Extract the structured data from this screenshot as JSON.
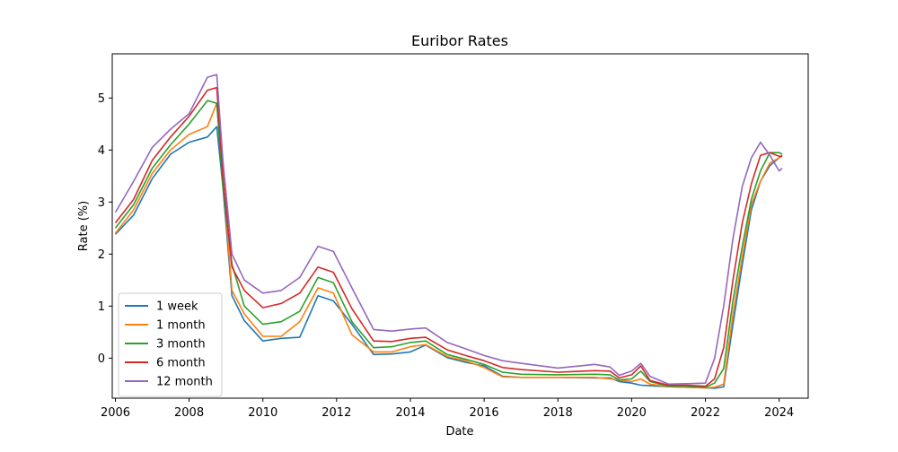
{
  "chart_data": {
    "type": "line",
    "title": "Euribor Rates",
    "xlabel": "Date",
    "ylabel": "Rate (%)",
    "xlim": [
      "2005-12-01",
      "2024-10-15"
    ],
    "ylim": [
      -0.77,
      5.85
    ],
    "x_ticks": [
      {
        "label": "2006",
        "date": "2006-01-01"
      },
      {
        "label": "2008",
        "date": "2008-01-01"
      },
      {
        "label": "2010",
        "date": "2010-01-01"
      },
      {
        "label": "2012",
        "date": "2012-01-01"
      },
      {
        "label": "2014",
        "date": "2014-01-01"
      },
      {
        "label": "2016",
        "date": "2016-01-01"
      },
      {
        "label": "2018",
        "date": "2018-01-01"
      },
      {
        "label": "2020",
        "date": "2020-01-01"
      },
      {
        "label": "2022",
        "date": "2022-01-01"
      },
      {
        "label": "2024",
        "date": "2024-01-01"
      }
    ],
    "y_ticks": [
      {
        "label": "0",
        "value": 0
      },
      {
        "label": "1",
        "value": 1
      },
      {
        "label": "2",
        "value": 2
      },
      {
        "label": "3",
        "value": 3
      },
      {
        "label": "4",
        "value": 4
      },
      {
        "label": "5",
        "value": 5
      }
    ],
    "grid": false,
    "legend": {
      "placement": "lower-left"
    },
    "x": [
      "2006-01-01",
      "2006-07-01",
      "2007-01-01",
      "2007-07-01",
      "2008-01-01",
      "2008-07-01",
      "2008-10-01",
      "2008-12-01",
      "2009-03-01",
      "2009-07-01",
      "2010-01-01",
      "2010-07-01",
      "2011-01-01",
      "2011-07-01",
      "2011-12-01",
      "2012-06-01",
      "2013-01-01",
      "2013-07-01",
      "2014-01-01",
      "2014-06-01",
      "2015-01-01",
      "2015-07-01",
      "2016-01-01",
      "2016-07-01",
      "2017-01-01",
      "2018-01-01",
      "2019-01-01",
      "2019-06-01",
      "2019-09-01",
      "2020-01-01",
      "2020-04-01",
      "2020-07-01",
      "2021-01-01",
      "2021-07-01",
      "2022-01-01",
      "2022-04-01",
      "2022-07-01",
      "2022-10-01",
      "2023-01-01",
      "2023-04-01",
      "2023-07-01",
      "2023-10-01",
      "2024-01-01",
      "2024-02-01"
    ],
    "series": [
      {
        "name": "1 week",
        "color": "#1f77b4",
        "values": [
          2.38,
          2.75,
          3.45,
          3.92,
          4.15,
          4.25,
          4.45,
          3.3,
          1.2,
          0.72,
          0.33,
          0.38,
          0.4,
          1.2,
          1.1,
          0.65,
          0.07,
          0.08,
          0.12,
          0.25,
          0.01,
          -0.08,
          -0.15,
          -0.35,
          -0.37,
          -0.37,
          -0.38,
          -0.38,
          -0.45,
          -0.48,
          -0.52,
          -0.53,
          -0.55,
          -0.56,
          -0.57,
          -0.58,
          -0.55,
          0.65,
          1.8,
          2.85,
          3.4,
          3.7,
          3.85,
          3.9
        ]
      },
      {
        "name": "1 month",
        "color": "#ff7f0e",
        "values": [
          2.4,
          2.85,
          3.55,
          4.0,
          4.3,
          4.45,
          4.9,
          3.5,
          1.3,
          0.85,
          0.42,
          0.42,
          0.7,
          1.35,
          1.25,
          0.45,
          0.12,
          0.12,
          0.22,
          0.26,
          0.03,
          -0.05,
          -0.18,
          -0.36,
          -0.37,
          -0.37,
          -0.37,
          -0.4,
          -0.42,
          -0.45,
          -0.4,
          -0.5,
          -0.55,
          -0.56,
          -0.57,
          -0.56,
          -0.5,
          0.85,
          1.95,
          2.95,
          3.4,
          3.75,
          3.85,
          3.9
        ]
      },
      {
        "name": "3 month",
        "color": "#2ca02c",
        "values": [
          2.5,
          2.95,
          3.65,
          4.1,
          4.5,
          4.95,
          4.9,
          3.3,
          1.8,
          1.0,
          0.65,
          0.7,
          0.9,
          1.55,
          1.45,
          0.7,
          0.2,
          0.22,
          0.3,
          0.33,
          0.07,
          -0.02,
          -0.12,
          -0.27,
          -0.31,
          -0.32,
          -0.31,
          -0.32,
          -0.42,
          -0.4,
          -0.25,
          -0.45,
          -0.54,
          -0.54,
          -0.56,
          -0.48,
          -0.2,
          1.1,
          2.15,
          3.05,
          3.6,
          3.95,
          3.95,
          3.92
        ]
      },
      {
        "name": "6 month",
        "color": "#d62728",
        "values": [
          2.6,
          3.05,
          3.8,
          4.25,
          4.65,
          5.15,
          5.2,
          3.5,
          1.75,
          1.3,
          0.97,
          1.05,
          1.25,
          1.75,
          1.65,
          0.95,
          0.33,
          0.32,
          0.38,
          0.4,
          0.16,
          0.05,
          -0.05,
          -0.18,
          -0.22,
          -0.27,
          -0.24,
          -0.25,
          -0.38,
          -0.32,
          -0.15,
          -0.43,
          -0.52,
          -0.52,
          -0.54,
          -0.4,
          0.2,
          1.5,
          2.6,
          3.35,
          3.9,
          3.95,
          3.88,
          3.88
        ]
      },
      {
        "name": "12 month",
        "color": "#9467bd",
        "values": [
          2.8,
          3.4,
          4.05,
          4.4,
          4.7,
          5.4,
          5.45,
          3.8,
          2.0,
          1.5,
          1.25,
          1.3,
          1.55,
          2.15,
          2.05,
          1.35,
          0.55,
          0.52,
          0.56,
          0.58,
          0.3,
          0.18,
          0.05,
          -0.05,
          -0.1,
          -0.19,
          -0.12,
          -0.17,
          -0.33,
          -0.25,
          -0.1,
          -0.35,
          -0.5,
          -0.49,
          -0.48,
          -0.01,
          1.0,
          2.3,
          3.3,
          3.85,
          4.15,
          3.9,
          3.6,
          3.65
        ]
      }
    ]
  }
}
